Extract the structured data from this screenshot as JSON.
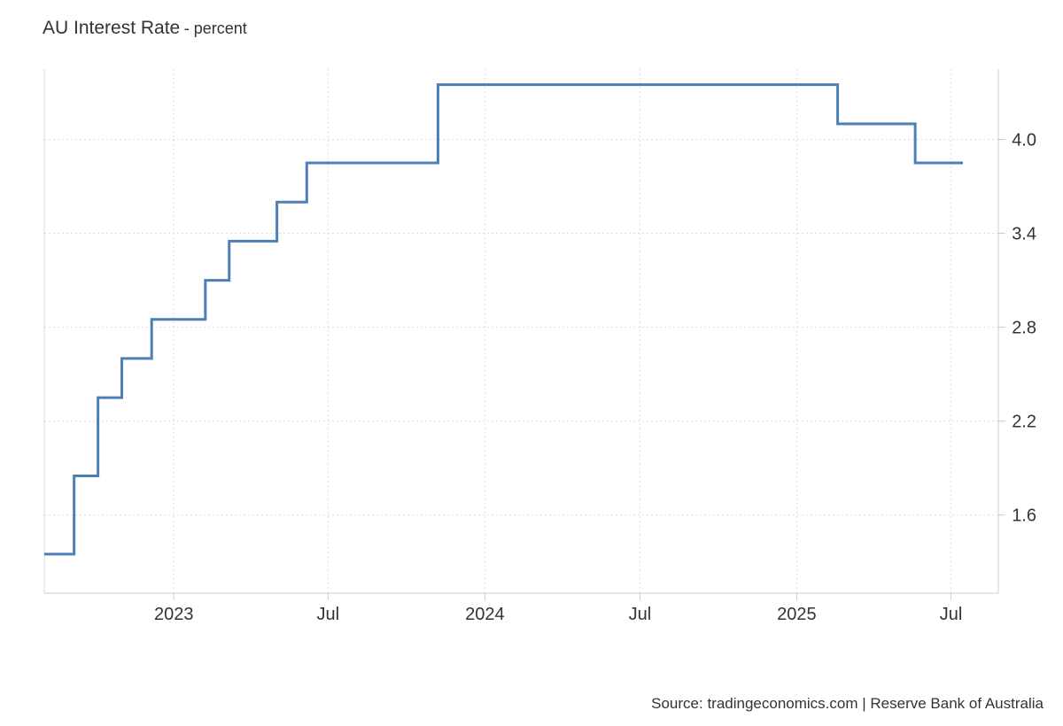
{
  "chart_data": {
    "type": "line",
    "title": "AU Interest Rate",
    "subtitle": "percent",
    "step": true,
    "series": [
      {
        "color": "#4c7fb8",
        "x": [
          "2022-08-02",
          "2022-09-06",
          "2022-10-04",
          "2022-11-01",
          "2022-12-06",
          "2023-02-07",
          "2023-03-07",
          "2023-05-02",
          "2023-06-06",
          "2023-11-07",
          "2025-02-18",
          "2025-05-20",
          "2025-07-15"
        ],
        "values": [
          1.35,
          1.85,
          2.35,
          2.6,
          2.85,
          3.1,
          3.35,
          3.6,
          3.85,
          4.35,
          4.1,
          3.85,
          3.85
        ]
      }
    ],
    "x_ticks": [
      {
        "label": "2023",
        "date": "2023-01-01"
      },
      {
        "label": "Jul",
        "date": "2023-07-01"
      },
      {
        "label": "2024",
        "date": "2024-01-01"
      },
      {
        "label": "Jul",
        "date": "2024-07-01"
      },
      {
        "label": "2025",
        "date": "2025-01-01"
      },
      {
        "label": "Jul",
        "date": "2025-07-01"
      }
    ],
    "y_ticks": [
      1.6,
      2.2,
      2.8,
      3.4,
      4.0
    ],
    "xlim": [
      "2022-08-02",
      "2025-07-15"
    ],
    "ylim": [
      1.1,
      4.45
    ],
    "y_axis_side": "right",
    "grid": true,
    "source": "Source: tradingeconomics.com | Reserve Bank of Australia"
  }
}
